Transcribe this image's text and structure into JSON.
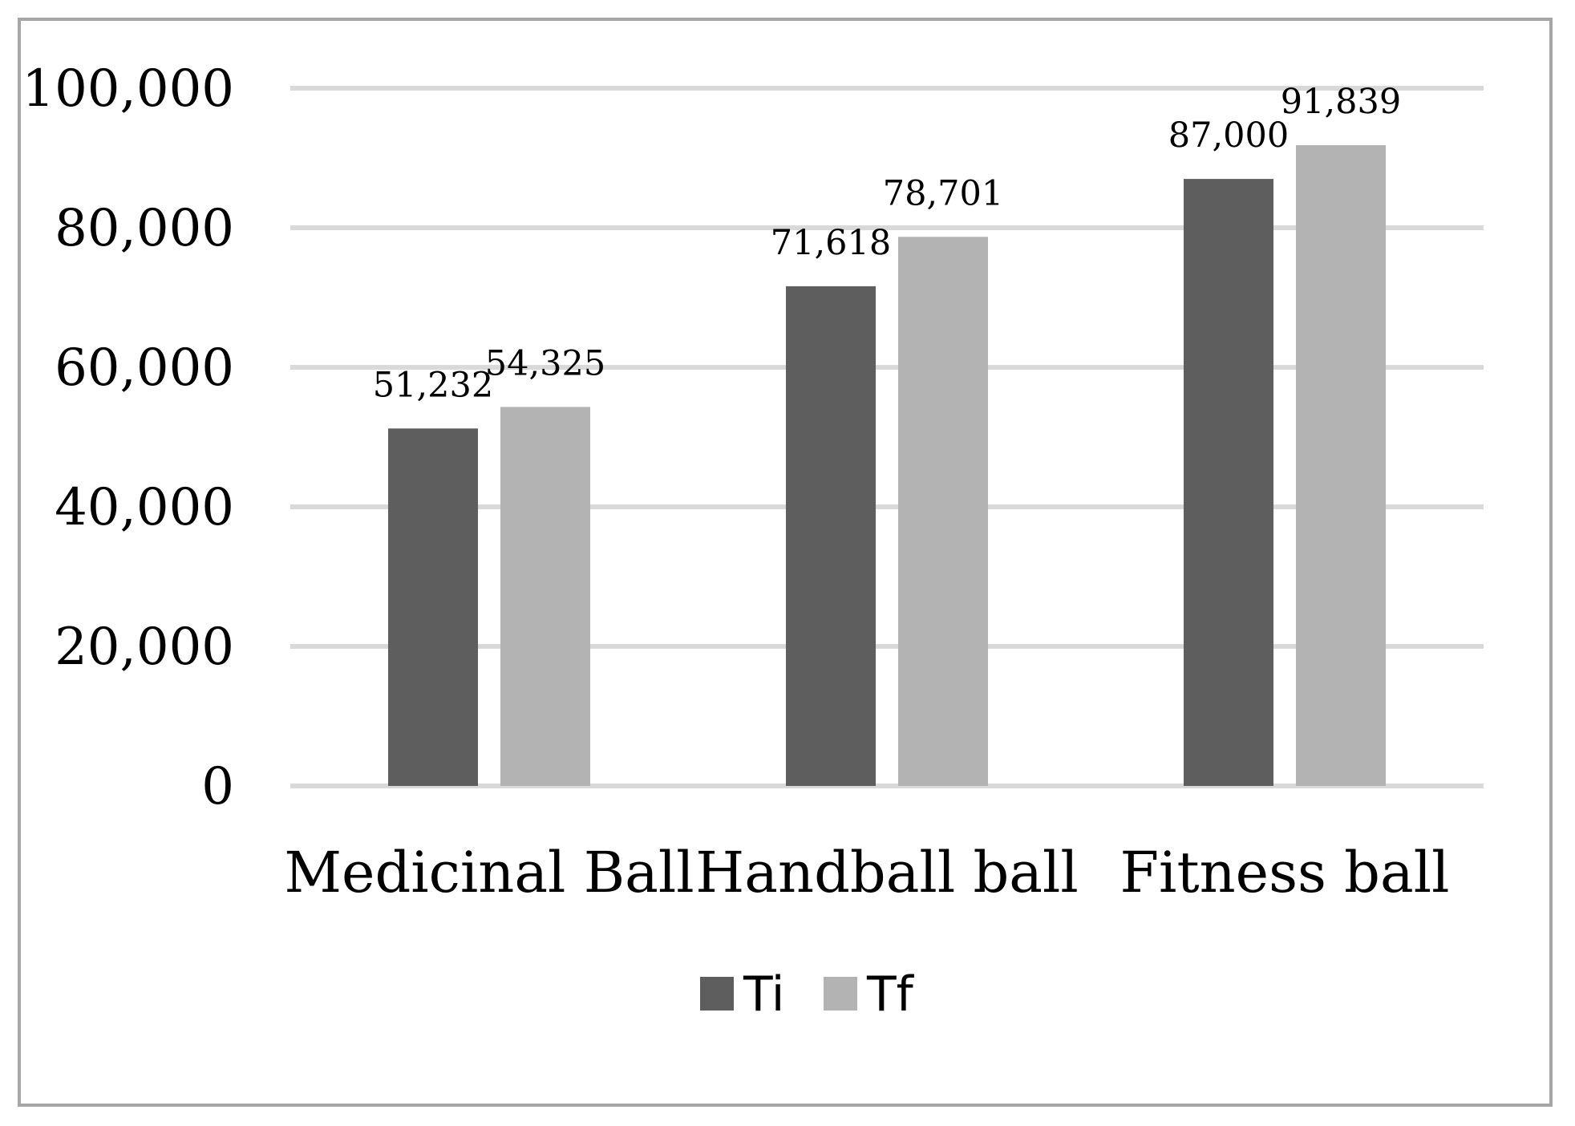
{
  "chart_data": {
    "type": "bar",
    "title": "",
    "xlabel": "",
    "ylabel": "",
    "categories": [
      "Medicinal Ball",
      "Handball ball",
      "Fitness ball"
    ],
    "series": [
      {
        "name": "Ti",
        "color": "#5e5e5e",
        "values": [
          51232,
          71618,
          87000
        ],
        "labels": [
          "51,232",
          "71,618",
          "87,000"
        ]
      },
      {
        "name": "Tf",
        "color": "#b3b3b3",
        "values": [
          54325,
          78701,
          91839
        ],
        "labels": [
          "54,325",
          "78,701",
          "91,839"
        ]
      }
    ],
    "ylim": [
      0,
      100000
    ],
    "yticks": [
      0,
      20000,
      40000,
      60000,
      80000,
      100000
    ],
    "ytick_labels": [
      "0",
      "20,000",
      "40,000",
      "60,000",
      "80,000",
      "100,000"
    ],
    "grid": true,
    "gridline_color": "#d9d9d9",
    "frame_color": "#a6a6a6",
    "legend_position": "bottom"
  }
}
